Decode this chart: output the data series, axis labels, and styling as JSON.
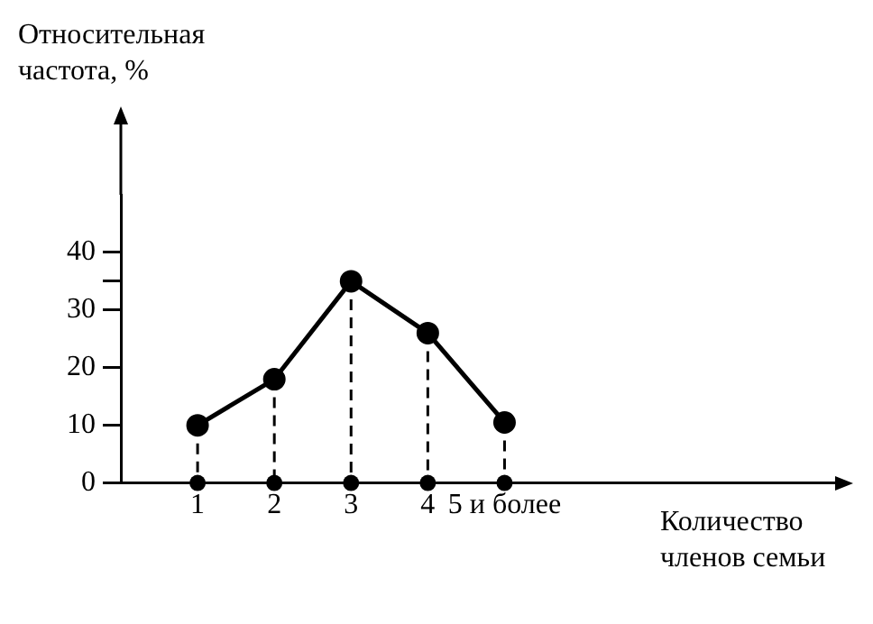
{
  "chart_data": {
    "type": "line",
    "xlabel": "Количество членов семьи",
    "ylabel": "Относительная частота, %",
    "categories": [
      "1",
      "2",
      "3",
      "4",
      "5 и более"
    ],
    "series": [
      {
        "color": "#000000",
        "values": [
          10,
          18,
          35,
          26,
          10.5
        ]
      }
    ],
    "ylim": [
      0,
      50
    ],
    "yticks": [
      0,
      10,
      20,
      30,
      {
        "value": 35,
        "label": null
      },
      40
    ],
    "grid": false,
    "legend": false,
    "marker": "circle",
    "line_style": "solid"
  }
}
